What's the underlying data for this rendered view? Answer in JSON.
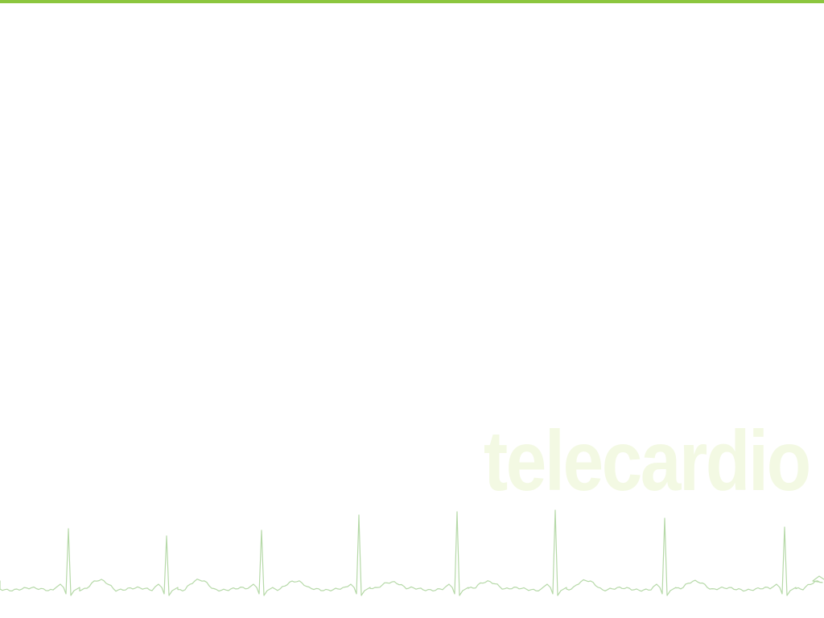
{
  "colors": {
    "accent_bar": "#8cc63f",
    "watermark_text": "#f3f9e3",
    "ecg_trace": "#b6d9a8"
  },
  "watermark": {
    "text": "telecardio"
  },
  "ecg": {
    "icon": "ecg-heartbeat-trace"
  }
}
